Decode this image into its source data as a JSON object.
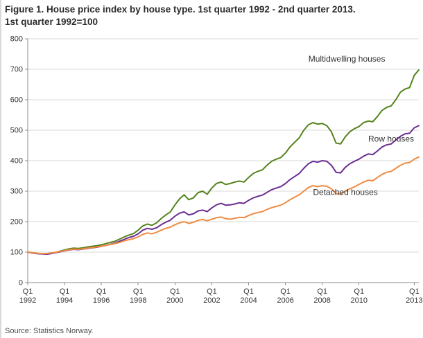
{
  "figure": {
    "title_line1": "Figure 1. House price index by house type. 1st quarter 1992 - 2nd quarter 2013.",
    "title_line2": "1st quarter 1992=100",
    "source": "Source: Statistics Norway."
  },
  "chart_data": {
    "type": "line",
    "title": "House price index by house type",
    "xlabel": "",
    "ylabel": "",
    "ylim": [
      0,
      800
    ],
    "grid": true,
    "legend_position": "inline-annotations",
    "x_range": "1992Q1 to 2013Q2, quarterly",
    "y_ticks": [
      0,
      100,
      200,
      300,
      400,
      500,
      600,
      700,
      800
    ],
    "x_ticks": [
      {
        "index": 0,
        "line1": "Q1",
        "line2": "1992"
      },
      {
        "index": 8,
        "line1": "Q1",
        "line2": "1994"
      },
      {
        "index": 16,
        "line1": "Q1",
        "line2": "1996"
      },
      {
        "index": 24,
        "line1": "Q1",
        "line2": "1998"
      },
      {
        "index": 32,
        "line1": "Q1",
        "line2": "2000"
      },
      {
        "index": 40,
        "line1": "Q1",
        "line2": "2002"
      },
      {
        "index": 48,
        "line1": "Q1",
        "line2": "2004"
      },
      {
        "index": 56,
        "line1": "Q1",
        "line2": "2006"
      },
      {
        "index": 64,
        "line1": "Q1",
        "line2": "2008"
      },
      {
        "index": 72,
        "line1": "Q1",
        "line2": "2010"
      },
      {
        "index": 84,
        "line1": "Q1",
        "line2": "2013"
      }
    ],
    "colors": {
      "grid": "#d9d9d9",
      "axis": "#8c8c8c"
    },
    "series": [
      {
        "name": "Multidwelling houses",
        "color": "#55821c",
        "values": [
          100,
          98,
          96,
          95,
          94,
          96,
          99,
          103,
          107,
          111,
          113,
          112,
          114,
          117,
          119,
          121,
          124,
          128,
          132,
          136,
          143,
          150,
          156,
          161,
          172,
          186,
          192,
          188,
          196,
          210,
          222,
          232,
          255,
          275,
          288,
          272,
          278,
          295,
          300,
          290,
          310,
          325,
          330,
          322,
          325,
          330,
          333,
          330,
          345,
          358,
          365,
          370,
          385,
          398,
          405,
          410,
          425,
          445,
          460,
          475,
          500,
          518,
          525,
          520,
          522,
          515,
          495,
          458,
          455,
          478,
          495,
          505,
          512,
          525,
          530,
          528,
          545,
          565,
          575,
          580,
          600,
          625,
          635,
          640,
          680,
          698
        ]
      },
      {
        "name": "Row houses",
        "color": "#6a2c91",
        "values": [
          100,
          97,
          95,
          94,
          93,
          95,
          98,
          101,
          104,
          107,
          109,
          108,
          110,
          112,
          114,
          116,
          119,
          122,
          126,
          130,
          136,
          142,
          148,
          152,
          160,
          172,
          178,
          175,
          180,
          190,
          198,
          205,
          218,
          228,
          232,
          222,
          226,
          235,
          238,
          233,
          245,
          255,
          260,
          254,
          255,
          258,
          262,
          260,
          270,
          278,
          283,
          287,
          296,
          305,
          310,
          315,
          325,
          338,
          348,
          358,
          375,
          390,
          398,
          395,
          400,
          398,
          385,
          362,
          360,
          378,
          390,
          398,
          405,
          415,
          422,
          420,
          432,
          445,
          452,
          455,
          468,
          480,
          488,
          490,
          508,
          515
        ]
      },
      {
        "name": "Detached houses",
        "color": "#ef8b41",
        "values": [
          100,
          98,
          96,
          95,
          95,
          97,
          99,
          102,
          105,
          108,
          110,
          109,
          111,
          113,
          115,
          117,
          119,
          122,
          125,
          128,
          132,
          137,
          141,
          144,
          150,
          158,
          163,
          160,
          165,
          172,
          178,
          182,
          190,
          196,
          200,
          194,
          198,
          204,
          207,
          203,
          208,
          213,
          215,
          210,
          208,
          211,
          214,
          213,
          220,
          226,
          230,
          233,
          240,
          246,
          250,
          254,
          262,
          272,
          280,
          288,
          300,
          312,
          318,
          315,
          318,
          316,
          308,
          292,
          290,
          300,
          308,
          314,
          322,
          330,
          336,
          334,
          345,
          355,
          362,
          365,
          375,
          385,
          392,
          394,
          405,
          412
        ]
      }
    ],
    "annotations": [
      {
        "text": "Multidwelling houses",
        "x_index": 61,
        "y": 725
      },
      {
        "text": "Row houses",
        "x_index": 74,
        "y": 463
      },
      {
        "text": "Detached houses",
        "x_index": 62,
        "y": 287
      }
    ]
  }
}
